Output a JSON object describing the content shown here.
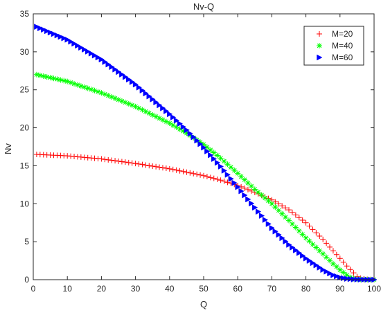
{
  "chart_data": {
    "type": "scatter",
    "title": "Nv-Q",
    "xlabel": "Q",
    "ylabel": "Nv",
    "xlim": [
      0,
      100
    ],
    "ylim": [
      0,
      35
    ],
    "xticks": [
      "0",
      "10",
      "20",
      "30",
      "40",
      "50",
      "60",
      "70",
      "80",
      "90",
      "100"
    ],
    "yticks": [
      "0",
      "5",
      "10",
      "15",
      "20",
      "25",
      "30",
      "35"
    ],
    "grid": false,
    "legend_position": "top-right",
    "series": [
      {
        "name": "M=20",
        "color": "#ff0000",
        "marker": "plus",
        "x": [
          1,
          10,
          20,
          30,
          40,
          50,
          55,
          60,
          65,
          70,
          75,
          80,
          85,
          88,
          90,
          92,
          94,
          95,
          96,
          97,
          98,
          99,
          100
        ],
        "y": [
          16.5,
          16.3,
          15.9,
          15.3,
          14.6,
          13.7,
          13.1,
          12.4,
          11.5,
          10.5,
          9.2,
          7.5,
          5.3,
          3.8,
          2.8,
          1.8,
          0.9,
          0.4,
          0.2,
          0.1,
          0.05,
          0.02,
          0.01
        ]
      },
      {
        "name": "M=40",
        "color": "#00ff00",
        "marker": "asterisk",
        "x": [
          1,
          10,
          20,
          30,
          40,
          45,
          50,
          55,
          60,
          65,
          70,
          75,
          80,
          85,
          88,
          90,
          92,
          93,
          94,
          95,
          96,
          97,
          100
        ],
        "y": [
          27.0,
          26.1,
          24.6,
          22.8,
          20.6,
          19.3,
          17.8,
          16.0,
          14.0,
          11.9,
          10.0,
          7.8,
          5.5,
          3.4,
          2.1,
          1.3,
          0.6,
          0.3,
          0.15,
          0.08,
          0.04,
          0.02,
          0.01
        ]
      },
      {
        "name": "M=60",
        "color": "#0000ff",
        "marker": "triangle-right",
        "x": [
          1,
          10,
          20,
          30,
          40,
          45,
          50,
          55,
          60,
          65,
          70,
          75,
          80,
          85,
          88,
          90,
          92,
          94,
          96,
          98,
          100
        ],
        "y": [
          33.3,
          31.6,
          29.0,
          25.7,
          21.8,
          19.7,
          17.4,
          14.9,
          12.2,
          9.5,
          6.8,
          4.6,
          2.8,
          1.3,
          0.6,
          0.3,
          0.12,
          0.05,
          0.02,
          0.01,
          0.0
        ]
      }
    ]
  }
}
